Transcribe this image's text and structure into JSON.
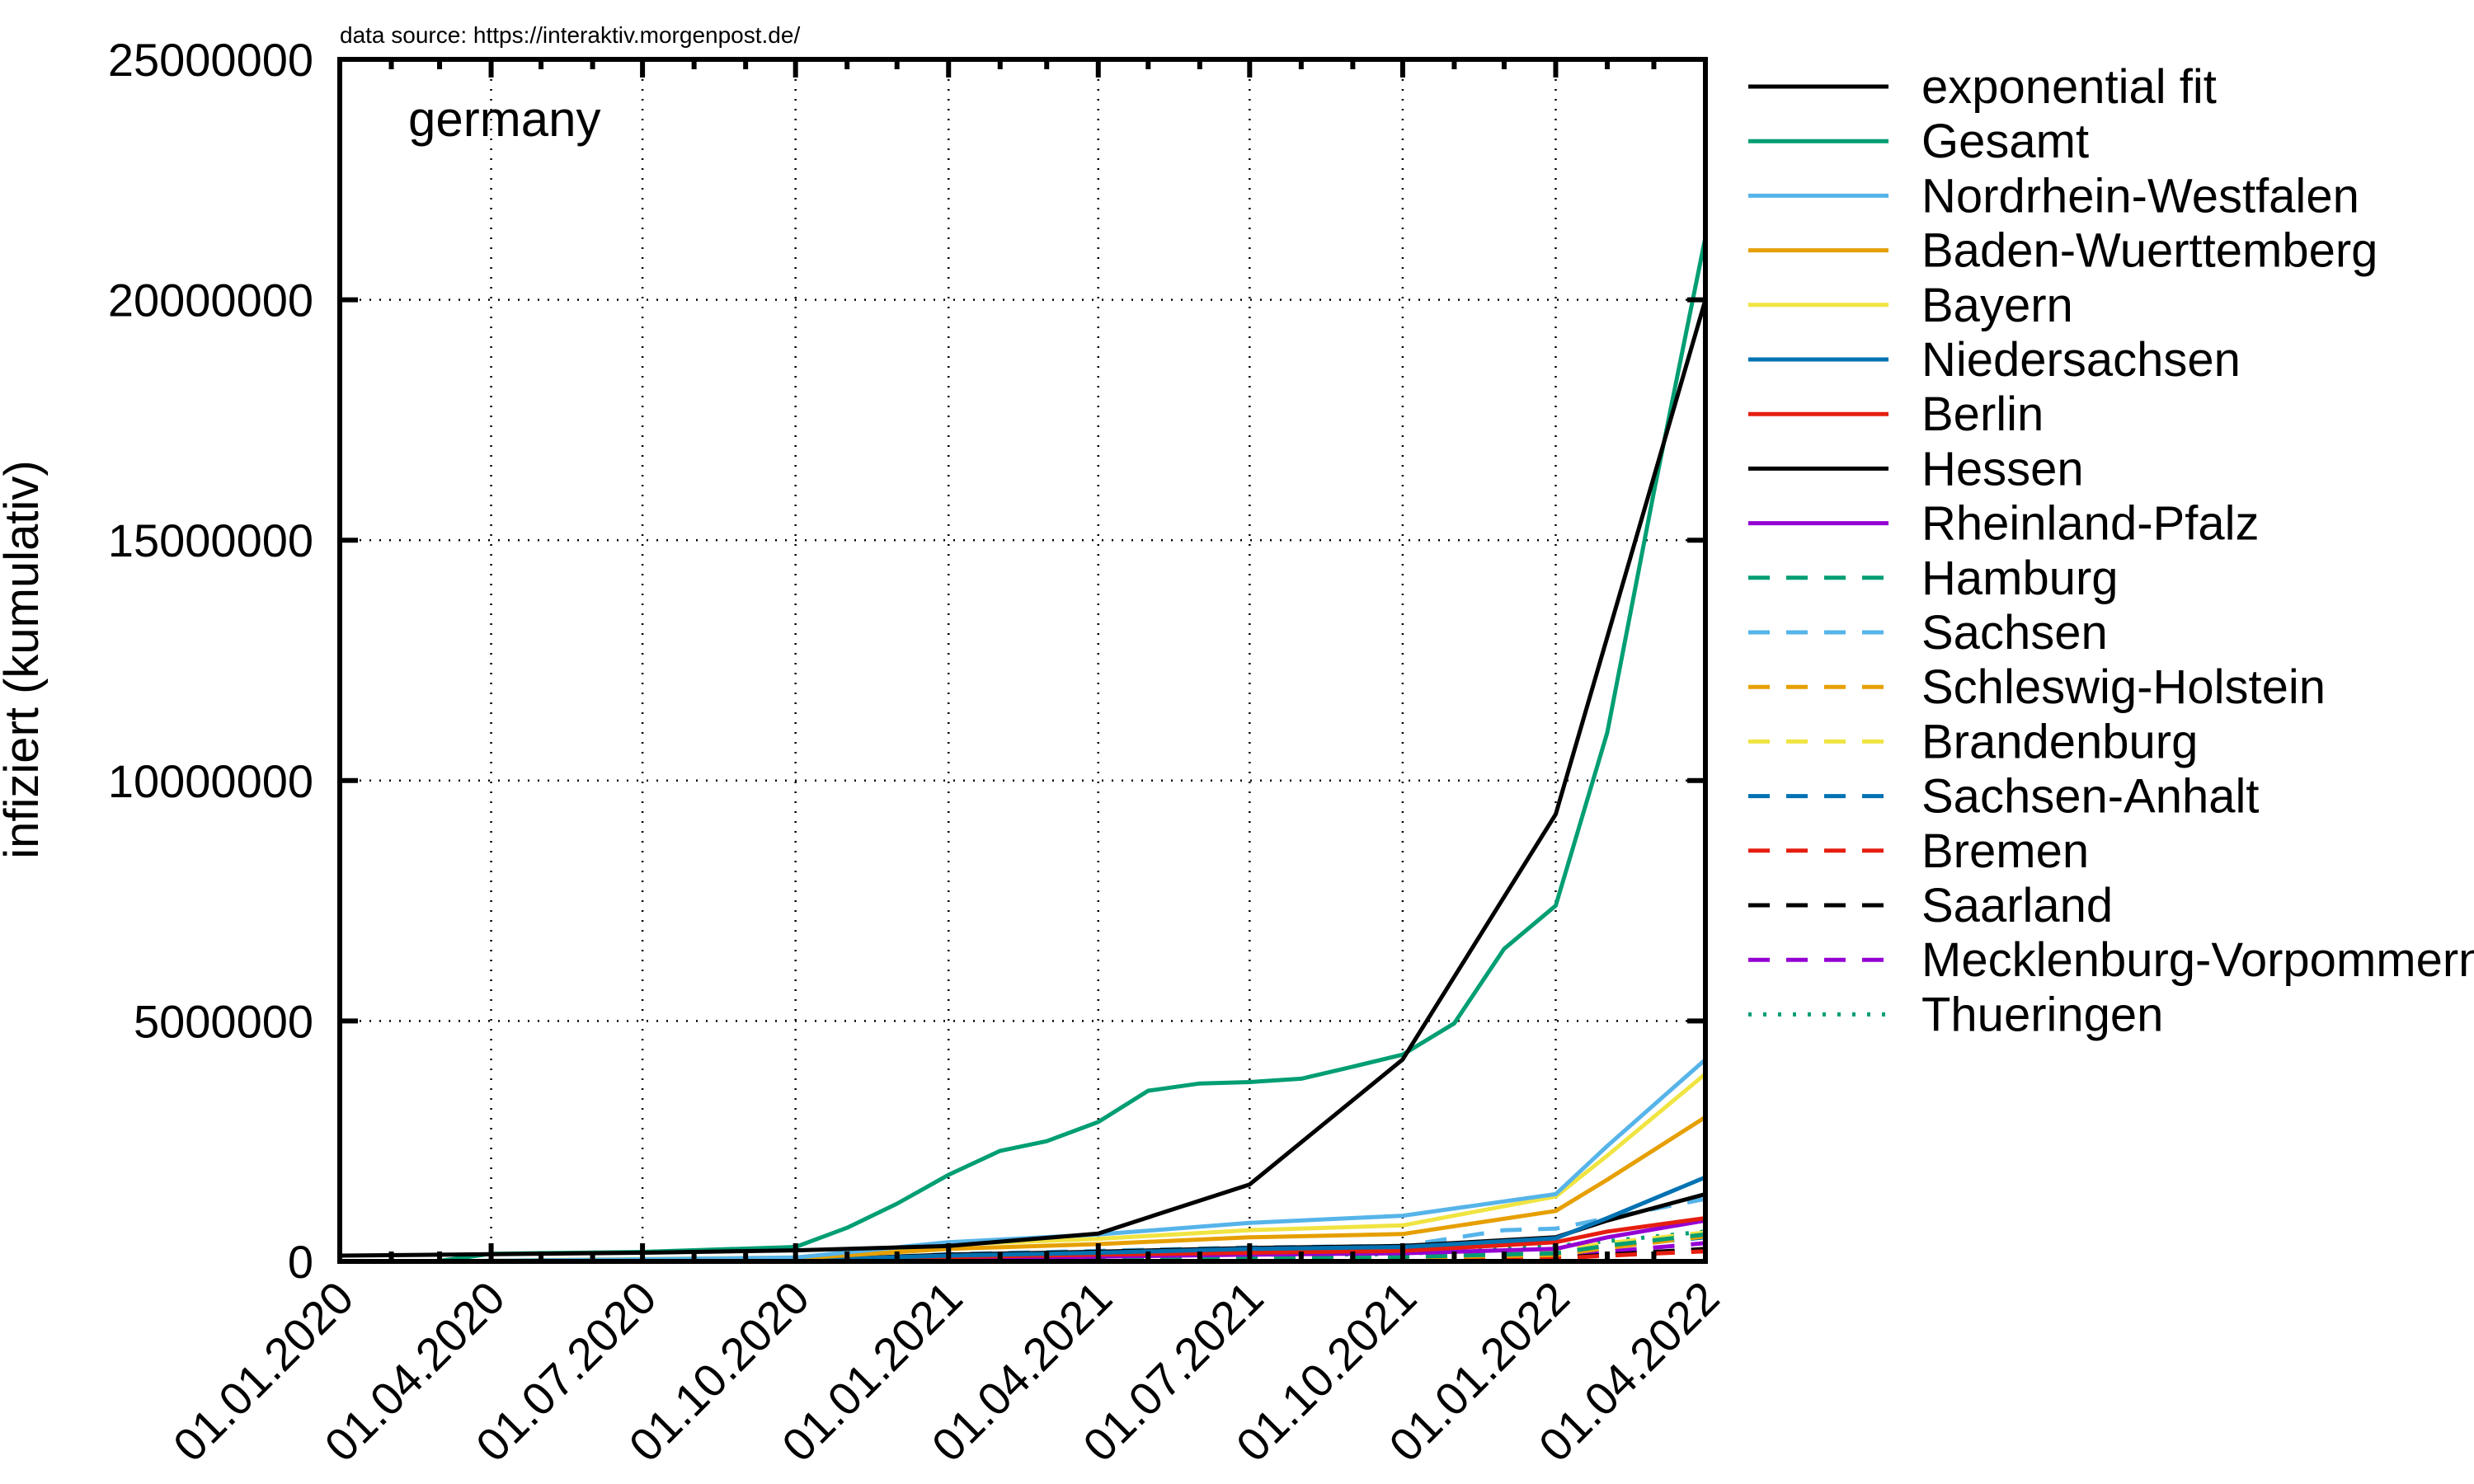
{
  "chart_data": {
    "type": "line",
    "source_note": "data source: https://interaktiv.morgenpost.de/",
    "panel_label": "germany",
    "ylabel": "infiziert (kumulativ)",
    "x_ticks": [
      "01.01.2020",
      "01.04.2020",
      "01.07.2020",
      "01.10.2020",
      "01.01.2021",
      "01.04.2021",
      "01.07.2021",
      "01.10.2021",
      "01.01.2022",
      "01.04.2022"
    ],
    "y_ticks": [
      "0",
      "5000000",
      "10000000",
      "15000000",
      "20000000",
      "25000000"
    ],
    "ylim": [
      0,
      25000000
    ],
    "xlim": [
      "2020-01-01",
      "2022-04-01"
    ],
    "grid": true,
    "legend_position": "right, outside",
    "series": [
      {
        "name": "exponential fit",
        "color": "#000000",
        "dash": "solid",
        "points": [
          [
            "2020-01-01",
            120000
          ],
          [
            "2020-04-01",
            150000
          ],
          [
            "2020-07-01",
            180000
          ],
          [
            "2020-10-01",
            230000
          ],
          [
            "2021-01-01",
            320000
          ],
          [
            "2021-04-01",
            580000
          ],
          [
            "2021-07-01",
            1600000
          ],
          [
            "2021-10-01",
            4200000
          ],
          [
            "2022-01-01",
            9300000
          ],
          [
            "2022-04-01",
            20000000
          ]
        ]
      },
      {
        "name": "Gesamt",
        "color": "#009e73",
        "dash": "solid",
        "points": [
          [
            "2020-03-01",
            10000
          ],
          [
            "2020-04-01",
            160000
          ],
          [
            "2020-07-01",
            198000
          ],
          [
            "2020-10-01",
            300000
          ],
          [
            "2020-11-01",
            700000
          ],
          [
            "2020-12-01",
            1200000
          ],
          [
            "2021-01-01",
            1800000
          ],
          [
            "2021-02-01",
            2300000
          ],
          [
            "2021-03-01",
            2500000
          ],
          [
            "2021-04-01",
            2900000
          ],
          [
            "2021-05-01",
            3550000
          ],
          [
            "2021-06-01",
            3700000
          ],
          [
            "2021-07-01",
            3730000
          ],
          [
            "2021-08-01",
            3800000
          ],
          [
            "2021-09-01",
            4050000
          ],
          [
            "2021-10-01",
            4300000
          ],
          [
            "2021-11-01",
            4950000
          ],
          [
            "2021-12-01",
            6500000
          ],
          [
            "2022-01-01",
            7400000
          ],
          [
            "2022-02-01",
            11000000
          ],
          [
            "2022-03-01",
            16000000
          ],
          [
            "2022-04-01",
            21300000
          ]
        ]
      },
      {
        "name": "Nordrhein-Westfalen",
        "color": "#56b4e9",
        "dash": "solid",
        "points": [
          [
            "2020-03-01",
            0
          ],
          [
            "2020-07-01",
            45000
          ],
          [
            "2020-10-01",
            80000
          ],
          [
            "2021-01-01",
            400000
          ],
          [
            "2021-04-01",
            560000
          ],
          [
            "2021-07-01",
            800000
          ],
          [
            "2021-10-01",
            950000
          ],
          [
            "2022-01-01",
            1400000
          ],
          [
            "2022-02-01",
            2400000
          ],
          [
            "2022-04-01",
            4200000
          ]
        ]
      },
      {
        "name": "Baden-Wuerttemberg",
        "color": "#e69f00",
        "dash": "solid",
        "points": [
          [
            "2020-03-01",
            0
          ],
          [
            "2020-07-01",
            36000
          ],
          [
            "2020-10-01",
            60000
          ],
          [
            "2021-01-01",
            260000
          ],
          [
            "2021-04-01",
            360000
          ],
          [
            "2021-07-01",
            500000
          ],
          [
            "2021-10-01",
            570000
          ],
          [
            "2022-01-01",
            1050000
          ],
          [
            "2022-02-01",
            1700000
          ],
          [
            "2022-04-01",
            3000000
          ]
        ]
      },
      {
        "name": "Bayern",
        "color": "#f0e442",
        "dash": "solid",
        "points": [
          [
            "2020-03-01",
            0
          ],
          [
            "2020-07-01",
            49000
          ],
          [
            "2020-10-01",
            80000
          ],
          [
            "2021-01-01",
            350000
          ],
          [
            "2021-04-01",
            470000
          ],
          [
            "2021-07-01",
            650000
          ],
          [
            "2021-10-01",
            750000
          ],
          [
            "2022-01-01",
            1350000
          ],
          [
            "2022-02-01",
            2200000
          ],
          [
            "2022-04-01",
            3900000
          ]
        ]
      },
      {
        "name": "Niedersachsen",
        "color": "#0072b2",
        "dash": "solid",
        "points": [
          [
            "2020-03-01",
            0
          ],
          [
            "2020-07-01",
            14000
          ],
          [
            "2020-10-01",
            25000
          ],
          [
            "2021-01-01",
            120000
          ],
          [
            "2021-04-01",
            180000
          ],
          [
            "2021-07-01",
            260000
          ],
          [
            "2021-10-01",
            300000
          ],
          [
            "2022-01-01",
            480000
          ],
          [
            "2022-02-01",
            900000
          ],
          [
            "2022-04-01",
            1750000
          ]
        ]
      },
      {
        "name": "Berlin",
        "color": "#e51e10",
        "dash": "solid",
        "points": [
          [
            "2020-03-01",
            0
          ],
          [
            "2020-07-01",
            9000
          ],
          [
            "2020-10-01",
            15000
          ],
          [
            "2021-01-01",
            90000
          ],
          [
            "2021-04-01",
            140000
          ],
          [
            "2021-07-01",
            180000
          ],
          [
            "2021-10-01",
            220000
          ],
          [
            "2022-01-01",
            400000
          ],
          [
            "2022-02-01",
            620000
          ],
          [
            "2022-04-01",
            900000
          ]
        ]
      },
      {
        "name": "Hessen",
        "color": "#000000",
        "dash": "solid",
        "points": [
          [
            "2020-03-01",
            0
          ],
          [
            "2020-07-01",
            11000
          ],
          [
            "2020-10-01",
            18000
          ],
          [
            "2021-01-01",
            140000
          ],
          [
            "2021-04-01",
            200000
          ],
          [
            "2021-07-01",
            280000
          ],
          [
            "2021-10-01",
            320000
          ],
          [
            "2022-01-01",
            500000
          ],
          [
            "2022-02-01",
            850000
          ],
          [
            "2022-04-01",
            1400000
          ]
        ]
      },
      {
        "name": "Rheinland-Pfalz",
        "color": "#9400d3",
        "dash": "solid",
        "points": [
          [
            "2020-03-01",
            0
          ],
          [
            "2020-07-01",
            7000
          ],
          [
            "2020-10-01",
            12000
          ],
          [
            "2021-01-01",
            70000
          ],
          [
            "2021-04-01",
            100000
          ],
          [
            "2021-07-01",
            140000
          ],
          [
            "2021-10-01",
            170000
          ],
          [
            "2022-01-01",
            260000
          ],
          [
            "2022-02-01",
            500000
          ],
          [
            "2022-04-01",
            850000
          ]
        ]
      },
      {
        "name": "Hamburg",
        "color": "#009e73",
        "dash": "dashed",
        "points": [
          [
            "2020-03-01",
            0
          ],
          [
            "2020-07-01",
            5000
          ],
          [
            "2020-10-01",
            8000
          ],
          [
            "2021-01-01",
            35000
          ],
          [
            "2021-04-01",
            60000
          ],
          [
            "2021-07-01",
            80000
          ],
          [
            "2021-10-01",
            95000
          ],
          [
            "2022-01-01",
            170000
          ],
          [
            "2022-02-01",
            330000
          ],
          [
            "2022-04-01",
            560000
          ]
        ]
      },
      {
        "name": "Sachsen",
        "color": "#56b4e9",
        "dash": "dashed",
        "points": [
          [
            "2020-03-01",
            0
          ],
          [
            "2020-07-01",
            5000
          ],
          [
            "2020-10-01",
            9000
          ],
          [
            "2021-01-01",
            150000
          ],
          [
            "2021-04-01",
            220000
          ],
          [
            "2021-07-01",
            290000
          ],
          [
            "2021-10-01",
            320000
          ],
          [
            "2021-12-01",
            650000
          ],
          [
            "2022-01-01",
            680000
          ],
          [
            "2022-02-01",
            900000
          ],
          [
            "2022-04-01",
            1300000
          ]
        ]
      },
      {
        "name": "Schleswig-Holstein",
        "color": "#e69f00",
        "dash": "dashed",
        "points": [
          [
            "2020-03-01",
            0
          ],
          [
            "2020-07-01",
            3000
          ],
          [
            "2020-10-01",
            5000
          ],
          [
            "2021-01-01",
            25000
          ],
          [
            "2021-04-01",
            45000
          ],
          [
            "2021-07-01",
            62000
          ],
          [
            "2021-10-01",
            75000
          ],
          [
            "2022-01-01",
            130000
          ],
          [
            "2022-02-01",
            280000
          ],
          [
            "2022-04-01",
            520000
          ]
        ]
      },
      {
        "name": "Brandenburg",
        "color": "#f0e442",
        "dash": "dashed",
        "points": [
          [
            "2020-03-01",
            0
          ],
          [
            "2020-07-01",
            3000
          ],
          [
            "2020-10-01",
            5000
          ],
          [
            "2021-01-01",
            55000
          ],
          [
            "2021-04-01",
            90000
          ],
          [
            "2021-07-01",
            110000
          ],
          [
            "2021-10-01",
            120000
          ],
          [
            "2022-01-01",
            240000
          ],
          [
            "2022-02-01",
            380000
          ],
          [
            "2022-04-01",
            600000
          ]
        ]
      },
      {
        "name": "Sachsen-Anhalt",
        "color": "#0072b2",
        "dash": "dashed",
        "points": [
          [
            "2020-03-01",
            0
          ],
          [
            "2020-07-01",
            2000
          ],
          [
            "2020-10-01",
            3000
          ],
          [
            "2021-01-01",
            40000
          ],
          [
            "2021-04-01",
            70000
          ],
          [
            "2021-07-01",
            95000
          ],
          [
            "2021-10-01",
            105000
          ],
          [
            "2022-01-01",
            210000
          ],
          [
            "2022-02-01",
            310000
          ],
          [
            "2022-04-01",
            500000
          ]
        ]
      },
      {
        "name": "Bremen",
        "color": "#e51e10",
        "dash": "dashed",
        "points": [
          [
            "2020-03-01",
            0
          ],
          [
            "2020-07-01",
            1500
          ],
          [
            "2020-10-01",
            2500
          ],
          [
            "2021-01-01",
            12000
          ],
          [
            "2021-04-01",
            20000
          ],
          [
            "2021-07-01",
            28000
          ],
          [
            "2021-10-01",
            33000
          ],
          [
            "2022-01-01",
            60000
          ],
          [
            "2022-02-01",
            120000
          ],
          [
            "2022-04-01",
            210000
          ]
        ]
      },
      {
        "name": "Saarland",
        "color": "#000000",
        "dash": "dashed",
        "points": [
          [
            "2020-03-01",
            0
          ],
          [
            "2020-07-01",
            2800
          ],
          [
            "2020-10-01",
            3500
          ],
          [
            "2021-01-01",
            20000
          ],
          [
            "2021-04-01",
            32000
          ],
          [
            "2021-07-01",
            41000
          ],
          [
            "2021-10-01",
            46000
          ],
          [
            "2022-01-01",
            70000
          ],
          [
            "2022-02-01",
            140000
          ],
          [
            "2022-04-01",
            260000
          ]
        ]
      },
      {
        "name": "Mecklenburg-Vorpommern",
        "color": "#9400d3",
        "dash": "dashed",
        "points": [
          [
            "2020-03-01",
            0
          ],
          [
            "2020-07-01",
            800
          ],
          [
            "2020-10-01",
            1500
          ],
          [
            "2021-01-01",
            15000
          ],
          [
            "2021-04-01",
            33000
          ],
          [
            "2021-07-01",
            44000
          ],
          [
            "2021-10-01",
            48000
          ],
          [
            "2022-01-01",
            130000
          ],
          [
            "2022-02-01",
            200000
          ],
          [
            "2022-04-01",
            380000
          ]
        ]
      },
      {
        "name": "Thueringen",
        "color": "#009e73",
        "dash": "dotted",
        "points": [
          [
            "2020-03-01",
            0
          ],
          [
            "2020-07-01",
            3200
          ],
          [
            "2020-10-01",
            4500
          ],
          [
            "2021-01-01",
            70000
          ],
          [
            "2021-04-01",
            115000
          ],
          [
            "2021-07-01",
            140000
          ],
          [
            "2021-10-01",
            150000
          ],
          [
            "2021-12-01",
            300000
          ],
          [
            "2022-01-01",
            320000
          ],
          [
            "2022-02-01",
            420000
          ],
          [
            "2022-04-01",
            620000
          ]
        ]
      }
    ]
  }
}
